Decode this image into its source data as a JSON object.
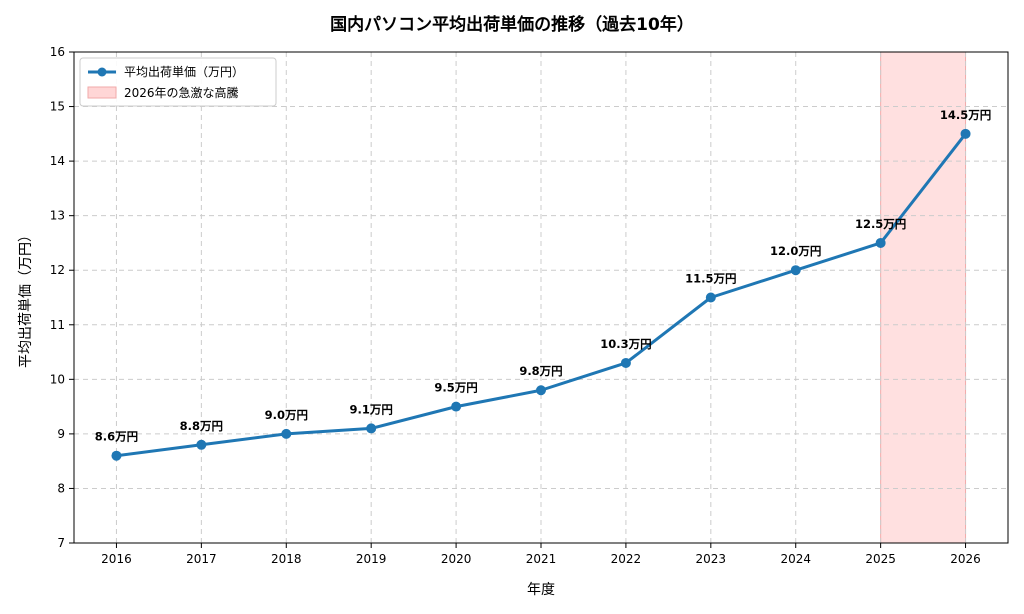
{
  "chart_data": {
    "type": "line",
    "title": "国内パソコン平均出荷単価の推移（過去10年）",
    "xlabel": "年度",
    "ylabel": "平均出荷単価（万円）",
    "x": [
      2016,
      2017,
      2018,
      2019,
      2020,
      2021,
      2022,
      2023,
      2024,
      2025,
      2026
    ],
    "series": [
      {
        "name": "平均出荷単価（万円）",
        "values": [
          8.6,
          8.8,
          9.0,
          9.1,
          9.5,
          9.8,
          10.3,
          11.5,
          12.0,
          12.5,
          14.5
        ],
        "color": "#1f77b4",
        "data_labels": [
          "8.6万円",
          "8.8万円",
          "9.0万円",
          "9.1万円",
          "9.5万円",
          "9.8万円",
          "10.3万円",
          "11.5万円",
          "12.0万円",
          "12.5万円",
          "14.5万円"
        ]
      }
    ],
    "highlight_region": {
      "label": "2026年の急激な高騰",
      "x_start": 2025,
      "x_end": 2026,
      "color": "#ffd6d6"
    },
    "x_ticks": [
      "2016",
      "2017",
      "2018",
      "2019",
      "2020",
      "2021",
      "2022",
      "2023",
      "2024",
      "2025",
      "2026"
    ],
    "y_ticks": [
      "7",
      "8",
      "9",
      "10",
      "11",
      "12",
      "13",
      "14",
      "15",
      "16"
    ],
    "xlim": [
      2015.5,
      2026.5
    ],
    "ylim": [
      7,
      16
    ],
    "grid": true,
    "legend_position": "top-left"
  }
}
